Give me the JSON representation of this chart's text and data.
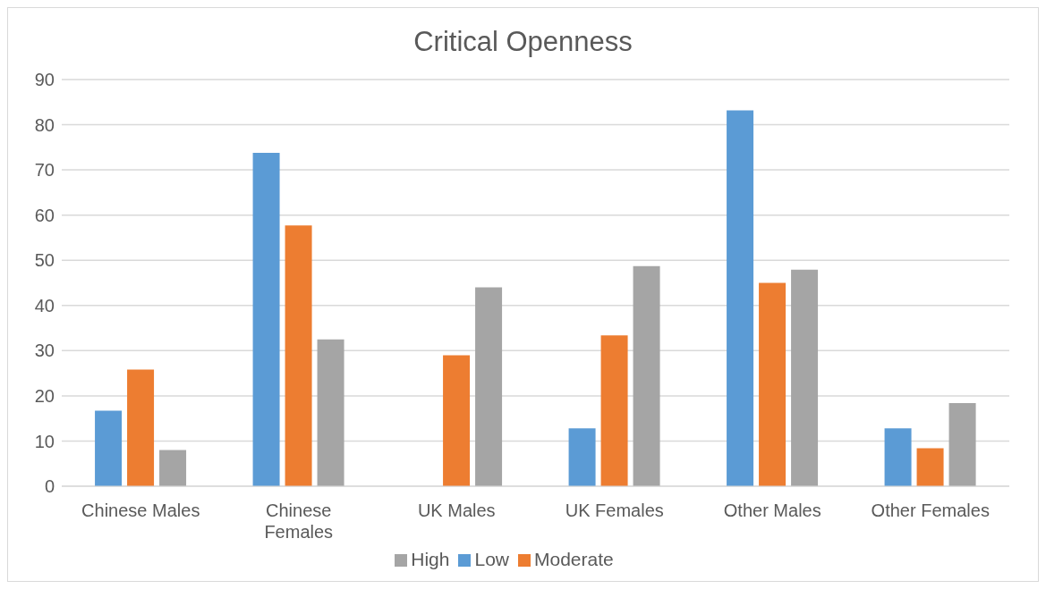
{
  "chart_data": {
    "type": "bar",
    "title": "Critical Openness",
    "categories": [
      "Chinese Males",
      "Chinese Females",
      "UK Males",
      "UK Females",
      "Other Males",
      "Other Females"
    ],
    "series": [
      {
        "name": "Low",
        "color": "#5b9bd5",
        "values": [
          16.7,
          73.8,
          0,
          12.8,
          83.2,
          12.8
        ]
      },
      {
        "name": "Moderate",
        "color": "#ed7d31",
        "values": [
          25.8,
          57.7,
          29,
          33.4,
          45,
          8.4
        ]
      },
      {
        "name": "High",
        "color": "#a5a5a5",
        "values": [
          8,
          32.5,
          44,
          48.7,
          47.9,
          18.4
        ]
      }
    ],
    "ylim": [
      0,
      90
    ],
    "yticks": [
      0,
      10,
      20,
      30,
      40,
      50,
      60,
      70,
      80,
      90
    ],
    "grid": "y",
    "legend": "bottom"
  }
}
